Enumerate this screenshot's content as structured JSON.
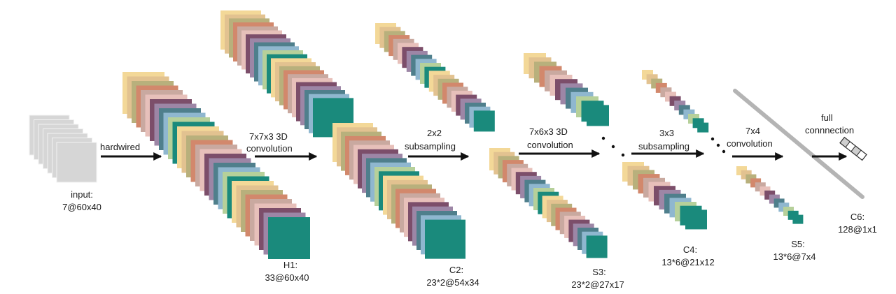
{
  "palette": [
    "#f3d898",
    "#e2c290",
    "#b8b07c",
    "#d2886c",
    "#c9a9a0",
    "#e7c0ba",
    "#7c4e6a",
    "#9d86a6",
    "#4f7f8c",
    "#8fb7cf",
    "#b6d09a",
    "#1a8a7c"
  ],
  "colors": {
    "input": "#d6d6d6",
    "input_edge": "#f2f2f2",
    "final": "#1a8a7c",
    "bar": "#b4b4b4",
    "c6_vector": "#cfcfcf"
  },
  "layers": {
    "input": {
      "name": "input:",
      "shape": "7@60x40"
    },
    "h1": {
      "name": "H1:",
      "shape": "33@60x40"
    },
    "c2": {
      "name": "C2:",
      "shape": "23*2@54x34"
    },
    "s3": {
      "name": "S3:",
      "shape": "23*2@27x17"
    },
    "c4": {
      "name": "C4:",
      "shape": "13*6@21x12"
    },
    "s5": {
      "name": "S5:",
      "shape": "13*6@7x4"
    },
    "c6": {
      "name": "C6:",
      "shape": "128@1x1"
    }
  },
  "operations": {
    "op1": {
      "line1": "hardwired",
      "line2": ""
    },
    "op2": {
      "line1": "7x7x3 3D",
      "line2": "convolution"
    },
    "op3": {
      "line1": "2x2",
      "line2": "subsampling"
    },
    "op4": {
      "line1": "7x6x3 3D",
      "line2": "convolution"
    },
    "op5": {
      "line1": "3x3",
      "line2": "subsampling"
    },
    "op6": {
      "line1": "7x4",
      "line2": "convolution"
    },
    "op7": {
      "line1": "full",
      "line2": "connnection"
    }
  }
}
